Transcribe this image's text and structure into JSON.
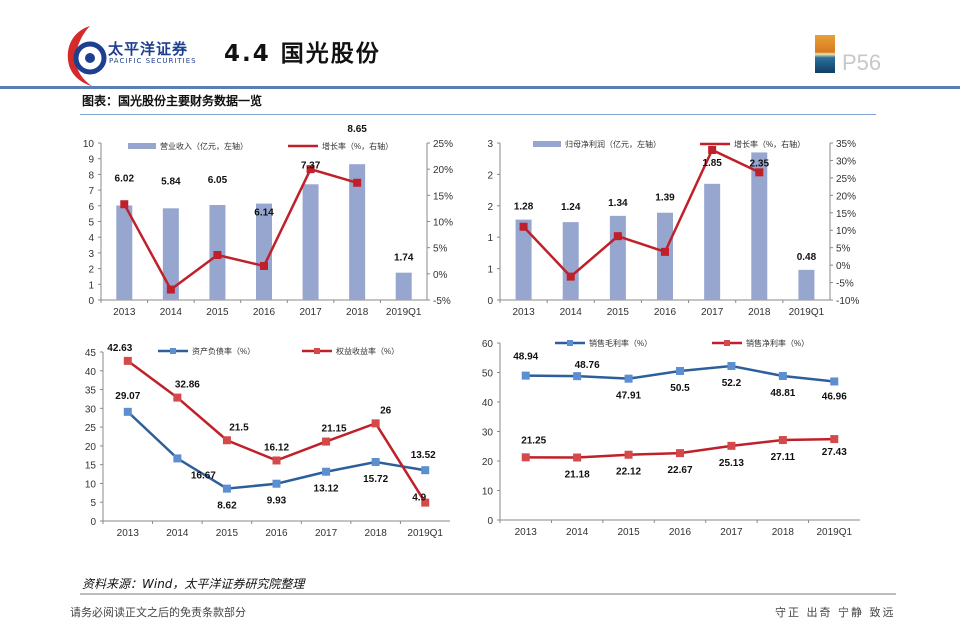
{
  "header": {
    "logo_cn": "太平洋证券",
    "logo_en": "PACIFIC SECURITIES",
    "title": "4.4 国光股份",
    "page": "P56"
  },
  "subtitle": "图表：国光股份主要财务数据一览",
  "source": "资料来源：Wind，太平洋证券研究院整理",
  "footer": {
    "disclaimer": "请务必阅读正文之后的免责条款部分",
    "motto": "守正 出奇 宁静 致远"
  },
  "colors": {
    "bar": "#97a6cf",
    "red": "#c0202a",
    "blue": "#2d5f9a",
    "marker_blue": "#5b8fd0",
    "marker_red": "#d44a4a"
  },
  "chart_data": [
    {
      "type": "bar+line",
      "categories": [
        "2013",
        "2014",
        "2015",
        "2016",
        "2017",
        "2018",
        "2019Q1"
      ],
      "bar": {
        "name": "营业收入（亿元，左轴）",
        "values": [
          6.02,
          5.84,
          6.05,
          6.14,
          7.37,
          8.65,
          1.74
        ]
      },
      "line": {
        "name": "增长率（%，右轴）",
        "values": [
          13.3,
          -3.0,
          3.6,
          1.5,
          20.0,
          17.4,
          null
        ]
      },
      "ylim": [
        0,
        10
      ],
      "yticks": [
        "0",
        "1",
        "2",
        "3",
        "4",
        "5",
        "6",
        "7",
        "8",
        "9",
        "10"
      ],
      "y2lim": [
        -5,
        25
      ],
      "y2ticks": [
        "-5%",
        "0%",
        "5%",
        "10%",
        "15%",
        "20%",
        "25%"
      ]
    },
    {
      "type": "bar+line",
      "categories": [
        "2013",
        "2014",
        "2015",
        "2016",
        "2017",
        "2018",
        "2019Q1"
      ],
      "bar": {
        "name": "归母净利润（亿元，左轴）",
        "values": [
          1.28,
          1.24,
          1.34,
          1.39,
          1.85,
          2.35,
          0.48
        ]
      },
      "line": {
        "name": "增长率（%，右轴）",
        "values": [
          11.0,
          -3.3,
          8.3,
          3.8,
          33.0,
          26.6,
          null
        ]
      },
      "ylim": [
        0,
        2.5
      ],
      "yticks": [
        "0",
        "1",
        "1",
        "2",
        "2",
        "3"
      ],
      "y2lim": [
        -10,
        35
      ],
      "y2ticks": [
        "-10%",
        "-5%",
        "0%",
        "5%",
        "10%",
        "15%",
        "20%",
        "25%",
        "30%",
        "35%"
      ]
    },
    {
      "type": "line",
      "categories": [
        "2013",
        "2014",
        "2015",
        "2016",
        "2017",
        "2018",
        "2019Q1"
      ],
      "series": [
        {
          "name": "资产负债率（%）",
          "values": [
            29.07,
            16.67,
            8.62,
            9.93,
            13.12,
            15.72,
            13.52
          ]
        },
        {
          "name": "权益收益率（%）",
          "values": [
            42.63,
            32.86,
            21.5,
            16.12,
            21.15,
            26.0,
            4.9
          ]
        }
      ],
      "ylim": [
        0,
        45
      ],
      "yticks": [
        "0",
        "5",
        "10",
        "15",
        "20",
        "25",
        "30",
        "35",
        "40",
        "45"
      ]
    },
    {
      "type": "line",
      "categories": [
        "2013",
        "2014",
        "2015",
        "2016",
        "2017",
        "2018",
        "2019Q1"
      ],
      "series": [
        {
          "name": "销售毛利率（%）",
          "values": [
            48.94,
            48.76,
            47.91,
            50.5,
            52.2,
            48.81,
            46.96
          ]
        },
        {
          "name": "销售净利率（%）",
          "values": [
            21.25,
            21.18,
            22.12,
            22.67,
            25.13,
            27.11,
            27.43
          ]
        }
      ],
      "ylim": [
        0,
        60
      ],
      "yticks": [
        "0",
        "10",
        "20",
        "30",
        "40",
        "50",
        "60"
      ]
    }
  ]
}
